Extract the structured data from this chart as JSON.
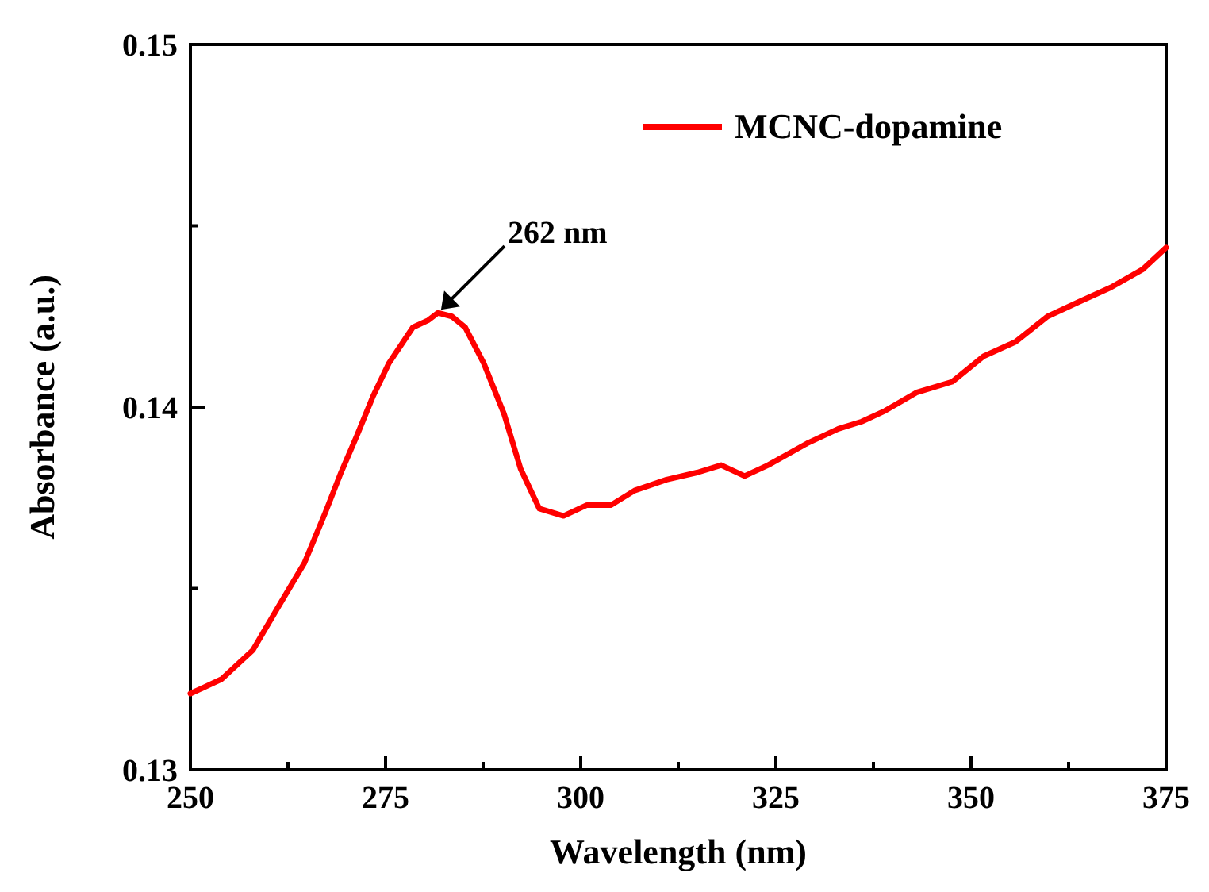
{
  "chart_data": {
    "type": "line",
    "xlabel": "Wavelength (nm)",
    "ylabel": "Absorbance (a.u.)",
    "xlim": [
      250,
      375
    ],
    "ylim": [
      0.13,
      0.15
    ],
    "xticks": [
      250,
      {
        "value": 262.5,
        "label": null
      },
      275,
      {
        "value": 287.5,
        "label": null
      },
      300,
      {
        "value": 312.5,
        "label": null
      },
      325,
      {
        "value": 337.5,
        "label": null
      },
      350,
      {
        "value": 362.5,
        "label": null
      },
      375
    ],
    "yticks": [
      {
        "value": 0.13,
        "label": "0.13"
      },
      {
        "value": 0.135,
        "label": null
      },
      {
        "value": 0.14,
        "label": "0.14"
      },
      {
        "value": 0.145,
        "label": null
      },
      {
        "value": 0.15,
        "label": "0.15"
      }
    ],
    "grid": false,
    "legend": "top right",
    "marker": "none",
    "line_style": "solid",
    "annotations": [
      {
        "text": "262 nm",
        "x": 281.7,
        "y": 0.1426
      }
    ],
    "series": [
      {
        "name": "MCNC-dopamine",
        "color": "#ff0000",
        "x": [
          250,
          254,
          258,
          261,
          264.6,
          267.3,
          269.3,
          271.3,
          273.4,
          275.4,
          278.5,
          280.5,
          281.7,
          283.5,
          285.2,
          287.6,
          290.2,
          292.3,
          294.7,
          297.8,
          300.8,
          303.9,
          306.9,
          311,
          315,
          318,
          321,
          324,
          329,
          333,
          336,
          339,
          343,
          347.6,
          351.6,
          355.7,
          359.8,
          363.8,
          367.9,
          372,
          375
        ],
        "values": [
          0.1321,
          0.1325,
          0.1333,
          0.1344,
          0.1357,
          0.1371,
          0.1382,
          0.1392,
          0.1403,
          0.1412,
          0.1422,
          0.1424,
          0.1426,
          0.1425,
          0.1422,
          0.1412,
          0.1398,
          0.1383,
          0.1372,
          0.137,
          0.1373,
          0.1373,
          0.1377,
          0.138,
          0.1382,
          0.1384,
          0.1381,
          0.1384,
          0.139,
          0.1394,
          0.1396,
          0.1399,
          0.1404,
          0.1407,
          0.1414,
          0.1418,
          0.1425,
          0.1429,
          0.1433,
          0.1438,
          0.1444
        ]
      }
    ]
  }
}
